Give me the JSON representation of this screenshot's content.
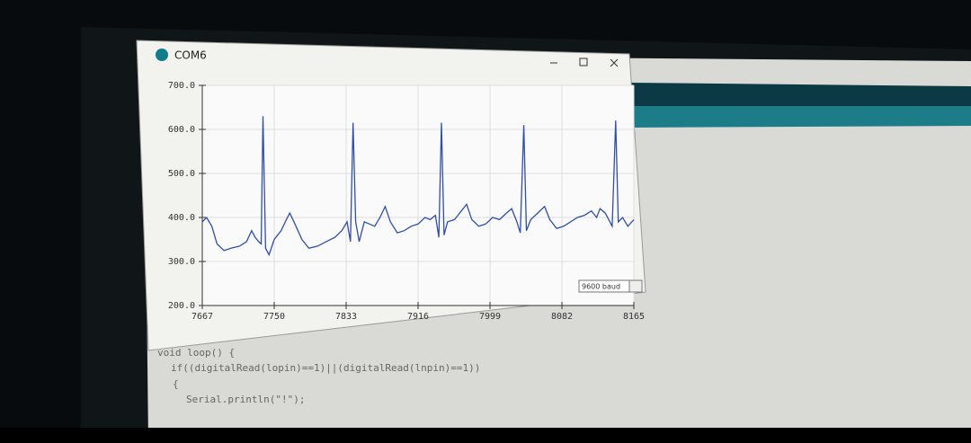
{
  "window": {
    "title": "COM6",
    "baud": "9600 baud"
  },
  "code": [
    "void loop() {",
    "if((digitalRead(lopin)==1)||(digitalRead(lnpin)==1))",
    "{",
    "Serial.println(\"!\");"
  ],
  "chart_data": {
    "type": "line",
    "xlim": [
      7667,
      8165
    ],
    "xticks": [
      7667,
      7750,
      7833,
      7916,
      7999,
      8082,
      8165
    ],
    "ylim": [
      200,
      700
    ],
    "yticks": [
      {
        "value": 200,
        "label": "200.0"
      },
      {
        "value": 300,
        "label": "300.0"
      },
      {
        "value": 400,
        "label": "400.0"
      },
      {
        "value": 500,
        "label": "500.0"
      },
      {
        "value": 600,
        "label": "600.0"
      },
      {
        "value": 700,
        "label": "700.0"
      }
    ],
    "grid": true,
    "series": [
      {
        "color": "#2f4fa8",
        "x": [
          7667,
          7672,
          7678,
          7684,
          7692,
          7700,
          7710,
          7718,
          7724,
          7728,
          7732,
          7735,
          7737,
          7740,
          7744,
          7750,
          7758,
          7764,
          7768,
          7774,
          7782,
          7790,
          7800,
          7810,
          7820,
          7828,
          7834,
          7838,
          7841,
          7844,
          7848,
          7854,
          7860,
          7866,
          7872,
          7878,
          7884,
          7892,
          7900,
          7908,
          7916,
          7924,
          7930,
          7936,
          7940,
          7943,
          7946,
          7950,
          7958,
          7966,
          7972,
          7978,
          7986,
          7994,
          8002,
          8010,
          8018,
          8024,
          8030,
          8034,
          8038,
          8041,
          8046,
          8054,
          8062,
          8068,
          8076,
          8084,
          8092,
          8100,
          8108,
          8116,
          8122,
          8126,
          8132,
          8140,
          8144,
          8147,
          8152,
          8158,
          8165
        ],
        "values": [
          390,
          400,
          380,
          340,
          325,
          330,
          335,
          345,
          370,
          355,
          345,
          340,
          630,
          330,
          315,
          350,
          370,
          395,
          410,
          385,
          350,
          330,
          335,
          345,
          355,
          370,
          390,
          345,
          615,
          390,
          345,
          390,
          385,
          380,
          400,
          425,
          390,
          365,
          370,
          380,
          385,
          400,
          395,
          405,
          355,
          615,
          360,
          390,
          395,
          415,
          430,
          395,
          380,
          385,
          400,
          395,
          410,
          420,
          390,
          365,
          610,
          370,
          395,
          410,
          425,
          395,
          375,
          380,
          390,
          400,
          405,
          415,
          400,
          420,
          410,
          380,
          620,
          390,
          400,
          380,
          395
        ]
      }
    ]
  }
}
